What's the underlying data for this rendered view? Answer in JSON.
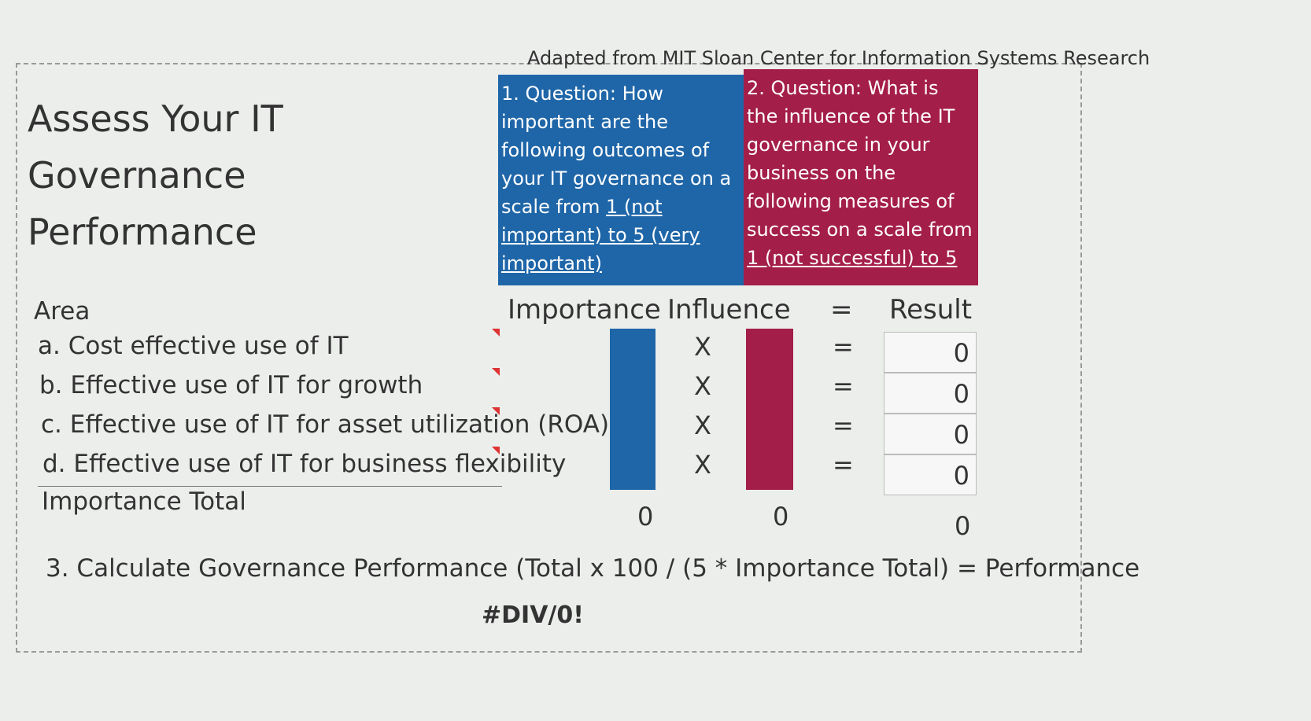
{
  "source": "Adapted from MIT Sloan Center for Information Systems Research",
  "title": "Assess Your IT Governance Performance",
  "question_1": {
    "text": "1. Question: How important are the following outcomes of your IT governance on a scale from",
    "scale": "1 (not important) to 5 (very important)"
  },
  "question_2": {
    "text": "2. Question: What is the influence of the IT governance in your business on the following measures of success on a scale from",
    "scale": "1 (not successful) to 5"
  },
  "table": {
    "headers": [
      "Area",
      "Importance",
      "Influence",
      "=",
      "Result"
    ],
    "rows": [
      {
        "area": "a. Cost effective use of IT",
        "times": "X",
        "equals": "=",
        "result": 0
      },
      {
        "area": "b. Effective use of IT for growth",
        "times": "X",
        "equals": "=",
        "result": 0
      },
      {
        "area": "c. Effective use of IT for asset utilization (ROA)",
        "times": "X",
        "equals": "=",
        "result": 0
      },
      {
        "area": "d. Effective use of IT for business flexibility",
        "times": "X",
        "equals": "=",
        "result": 0
      }
    ],
    "total_label": "Importance Total",
    "importance_total": 0,
    "influence_total": 0,
    "result_total": 0
  },
  "formula": "3. Calculate Governance Performance (Total x 100 / (5 * Importance Total) = Performance",
  "performance": "#DIV/0!"
}
